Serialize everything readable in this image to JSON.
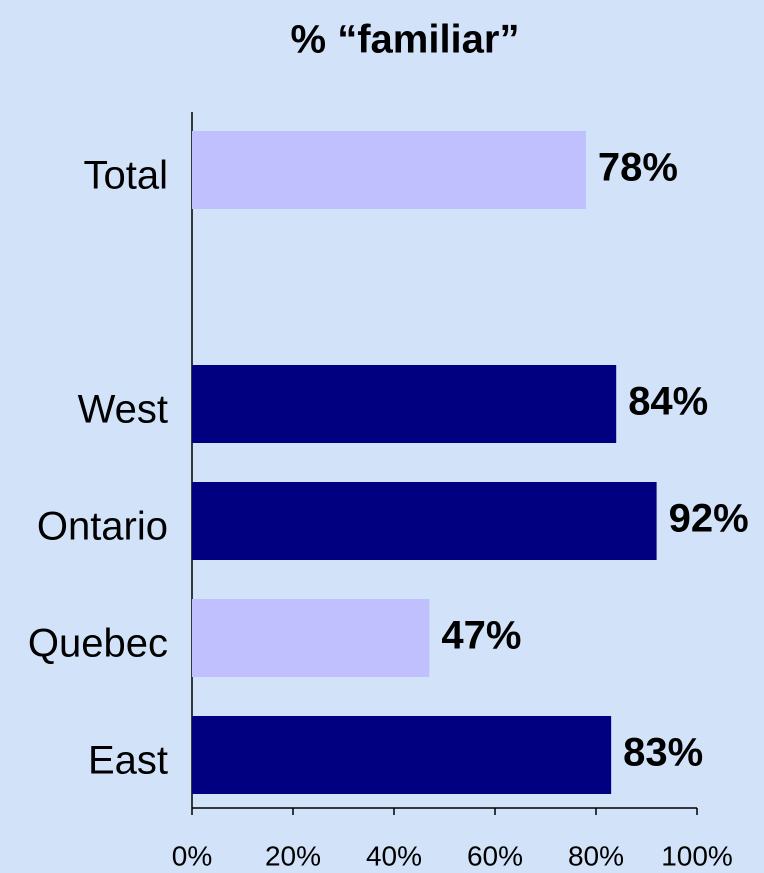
{
  "chart_data": {
    "type": "barh",
    "title": "% “familiar”",
    "categories": [
      "Total",
      null,
      "West",
      "Ontario",
      "Quebec",
      "East"
    ],
    "values": [
      78,
      null,
      84,
      92,
      47,
      83
    ],
    "value_labels": [
      "78%",
      null,
      "84%",
      "92%",
      "47%",
      "83%"
    ],
    "colors": [
      "#c0c0ff",
      null,
      "#000080",
      "#000080",
      "#c0c0ff",
      "#000080"
    ],
    "xlim": [
      0,
      100
    ],
    "xticks": [
      {
        "value": 0,
        "label": "0%"
      },
      {
        "value": 20,
        "label": "20%"
      },
      {
        "value": 40,
        "label": "40%"
      },
      {
        "value": 60,
        "label": "60%"
      },
      {
        "value": 80,
        "label": "80%"
      },
      {
        "value": 100,
        "label": "100%"
      }
    ]
  }
}
